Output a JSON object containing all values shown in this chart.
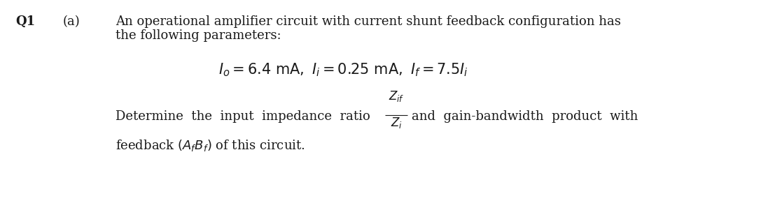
{
  "background_color": "#ffffff",
  "q1_label": "Q1",
  "a_label": "(a)",
  "line1": "An operational amplifier circuit with current shunt feedback configuration has",
  "line2": "the following parameters:",
  "text_color": "#1a1a1a",
  "font_size_main": 13.0
}
